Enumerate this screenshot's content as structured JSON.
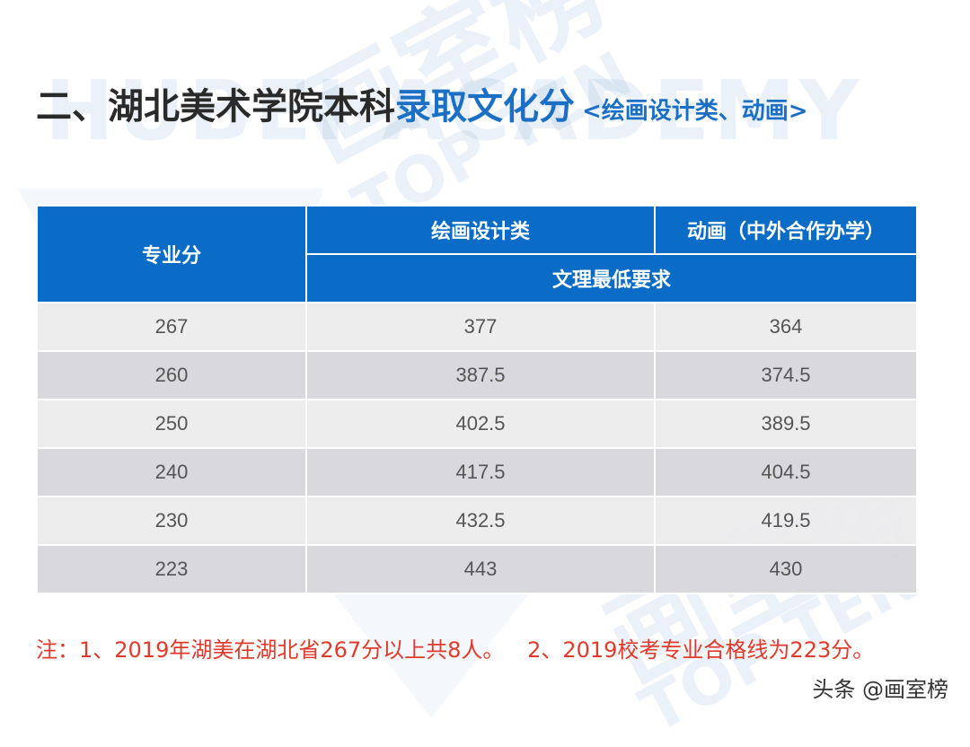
{
  "title": {
    "main": "二、湖北美术学院本科",
    "accent": "录取文化分",
    "sub": "<绘画设计类、动画>"
  },
  "table": {
    "header": {
      "row_label": "专业分",
      "col1": "绘画设计类",
      "col2": "动画（中外合作办学）",
      "subheader": "文理最低要求"
    },
    "rows": [
      {
        "score": "267",
        "painting_design": "377",
        "animation": "364"
      },
      {
        "score": "260",
        "painting_design": "387.5",
        "animation": "374.5"
      },
      {
        "score": "250",
        "painting_design": "402.5",
        "animation": "389.5"
      },
      {
        "score": "240",
        "painting_design": "417.5",
        "animation": "404.5"
      },
      {
        "score": "230",
        "painting_design": "432.5",
        "animation": "419.5"
      },
      {
        "score": "223",
        "painting_design": "443",
        "animation": "430"
      }
    ]
  },
  "note": {
    "part1": "注：1、2019年湖美在湖北省267分以上共8人。",
    "part2": "2、2019校考专业合格线为223分。"
  },
  "brand": "头条 @画室榜",
  "colors": {
    "header_blue": "#0a6cc6",
    "accent_blue": "#1b6fc4",
    "note_red": "#e03a2a"
  }
}
